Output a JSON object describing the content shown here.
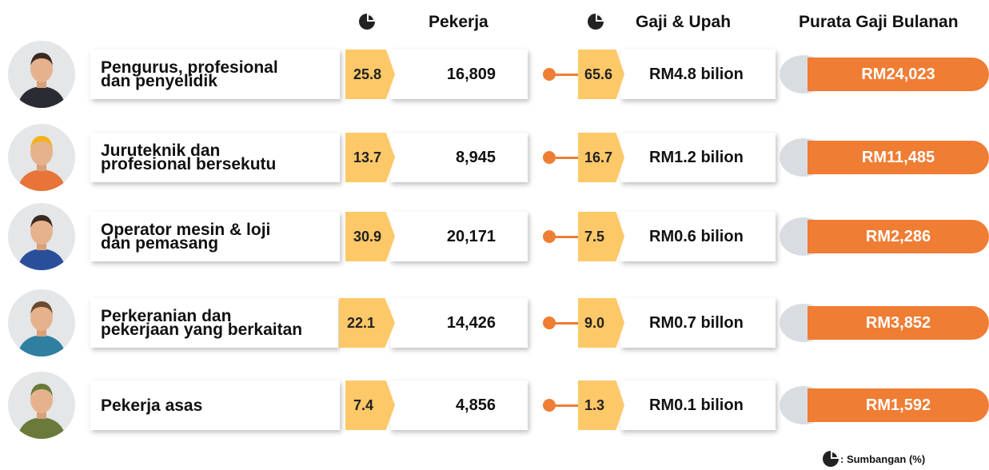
{
  "header": {
    "workers": "Pekerja",
    "wages": "Gaji & Upah",
    "average": "Purata Gaji Bulanan"
  },
  "rows": [
    {
      "label": [
        "Pengurus, profesional",
        "dan penyelidik"
      ],
      "worker_share": "25.8",
      "workers": "16,809",
      "wage_share": "65.6",
      "wages": "RM4.8 bilion",
      "average": "RM24,023"
    },
    {
      "label": [
        "Juruteknik dan",
        "profesional bersekutu"
      ],
      "worker_share": "13.7",
      "workers": "8,945",
      "wage_share": "16.7",
      "wages": "RM1.2 bilion",
      "average": "RM11,485"
    },
    {
      "label": [
        "Operator mesin & loji",
        "dan pemasang"
      ],
      "worker_share": "30.9",
      "workers": "20,171",
      "wage_share": "7.5",
      "wages": "RM0.6 bilion",
      "average": "RM2,286"
    },
    {
      "label": [
        "Perkeranian dan",
        "pekerjaan yang berkaitan"
      ],
      "worker_share": "22.1",
      "workers": "14,426",
      "wage_share": "9.0",
      "wages": "RM0.7 billon",
      "average": "RM3,852"
    },
    {
      "label": [
        "Pekerja asas"
      ],
      "worker_share": "7.4",
      "workers": "4,856",
      "wage_share": "1.3",
      "wages": "RM0.1 bilion",
      "average": "RM1,592"
    }
  ],
  "legend": ": Sumbangan (%)"
}
